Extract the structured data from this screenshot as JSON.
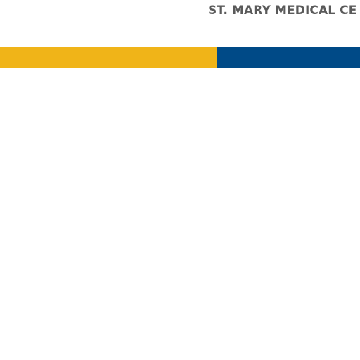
{
  "header": {
    "title": "ST. MARY MEDICAL CE"
  },
  "colors": {
    "background": "#ffffff",
    "title_text": "#5a5a5a",
    "stripe_gold": "#f0b418",
    "stripe_blue": "#004a87"
  }
}
